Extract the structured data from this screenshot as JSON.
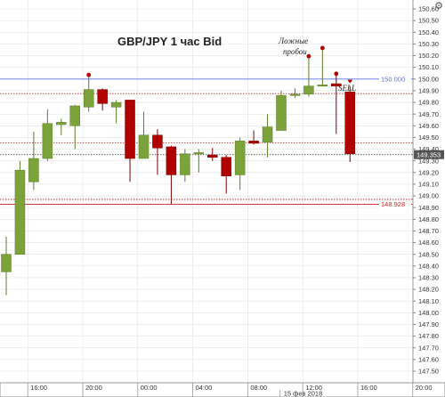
{
  "chart_data": {
    "type": "candlestick",
    "title": "GBP/JPY  1 час Bid",
    "annotation": [
      "Ложные",
      "пробои"
    ],
    "ylim": [
      147.5,
      150.77
    ],
    "yticks": [
      "150.60",
      "150.50",
      "150.40",
      "150.30",
      "150.20",
      "150.10",
      "150.00",
      "149.90",
      "149.80",
      "149.70",
      "149.60",
      "149.50",
      "149.40",
      "149.30",
      "149.20",
      "149.10",
      "149.00",
      "148.90",
      "148.80",
      "148.70",
      "148.60",
      "148.50",
      "148.40",
      "148.30",
      "148.20",
      "148.10",
      "148.00",
      "147.90",
      "147.80",
      "147.70",
      "147.60",
      "147.50"
    ],
    "xticks": [
      {
        "label": "16:00",
        "index": 2
      },
      {
        "label": "20:00",
        "index": 6
      },
      {
        "label": "00:00",
        "index": 10
      },
      {
        "label": "04:00",
        "index": 14
      },
      {
        "label": "08:00",
        "index": 18
      },
      {
        "label": "12:00",
        "index": 22
      },
      {
        "label": "16:00",
        "index": 26
      },
      {
        "label": "20:00",
        "index": 30
      }
    ],
    "date_label": {
      "label": "15 фев 2018",
      "index": 20.5
    },
    "candles": [
      {
        "o": 148.35,
        "h": 148.65,
        "l": 148.15,
        "c": 148.5
      },
      {
        "o": 148.5,
        "h": 149.3,
        "l": 148.5,
        "c": 149.22
      },
      {
        "o": 149.12,
        "h": 149.55,
        "l": 149.05,
        "c": 149.32
      },
      {
        "o": 149.32,
        "h": 149.74,
        "l": 149.3,
        "c": 149.62
      },
      {
        "o": 149.61,
        "h": 149.66,
        "l": 149.52,
        "c": 149.63
      },
      {
        "o": 149.6,
        "h": 149.78,
        "l": 149.4,
        "c": 149.77
      },
      {
        "o": 149.76,
        "h": 150.02,
        "l": 149.72,
        "c": 149.91
      },
      {
        "o": 149.91,
        "h": 149.92,
        "l": 149.73,
        "c": 149.79
      },
      {
        "o": 149.76,
        "h": 149.82,
        "l": 149.62,
        "c": 149.8
      },
      {
        "o": 149.82,
        "h": 149.82,
        "l": 149.12,
        "c": 149.32
      },
      {
        "o": 149.32,
        "h": 149.72,
        "l": 149.32,
        "c": 149.52
      },
      {
        "o": 149.52,
        "h": 149.57,
        "l": 149.18,
        "c": 149.41
      },
      {
        "o": 149.42,
        "h": 149.43,
        "l": 148.93,
        "c": 149.18
      },
      {
        "o": 149.18,
        "h": 149.4,
        "l": 149.12,
        "c": 149.36
      },
      {
        "o": 149.36,
        "h": 149.4,
        "l": 149.2,
        "c": 149.37
      },
      {
        "o": 149.35,
        "h": 149.41,
        "l": 149.3,
        "c": 149.33
      },
      {
        "o": 149.33,
        "h": 149.35,
        "l": 149.02,
        "c": 149.17
      },
      {
        "o": 149.18,
        "h": 149.5,
        "l": 149.05,
        "c": 149.47
      },
      {
        "o": 149.47,
        "h": 149.56,
        "l": 149.44,
        "c": 149.45
      },
      {
        "o": 149.46,
        "h": 149.7,
        "l": 149.33,
        "c": 149.59
      },
      {
        "o": 149.56,
        "h": 149.9,
        "l": 149.56,
        "c": 149.86
      },
      {
        "o": 149.86,
        "h": 149.92,
        "l": 149.84,
        "c": 149.87
      },
      {
        "o": 149.87,
        "h": 150.18,
        "l": 149.85,
        "c": 149.94
      },
      {
        "o": 149.94,
        "h": 150.25,
        "l": 149.94,
        "c": 149.95
      },
      {
        "o": 149.96,
        "h": 150.03,
        "l": 149.53,
        "c": 149.94
      },
      {
        "o": 149.89,
        "h": 149.94,
        "l": 149.29,
        "c": 149.36
      }
    ],
    "fractal_markers": [
      6,
      22,
      23,
      24
    ],
    "signal_marker": 25,
    "hlines": [
      {
        "value": 150.0,
        "label": "150.000",
        "color": "#5b6fe8",
        "style": "solid",
        "labeled": true
      },
      {
        "value": 149.875,
        "color": "#b03030",
        "style": "dotted",
        "labeled": false,
        "text": "SELL"
      },
      {
        "value": 149.455,
        "color": "#b03030",
        "style": "dotted",
        "labeled": false
      },
      {
        "value": 149.353,
        "label": "149.353",
        "color": "#555555",
        "style": "dotted",
        "labeled": true,
        "current": true
      },
      {
        "value": 148.97,
        "color": "#b03030",
        "style": "dotted",
        "labeled": false
      },
      {
        "value": 148.928,
        "label": "148.928",
        "color": "#d02020",
        "style": "solid",
        "labeled": true
      }
    ],
    "colors": {
      "bull": "#7ca23a",
      "bear": "#b00000",
      "grid": "#e2e2e2",
      "marker": "#b00000"
    },
    "grid": true
  },
  "ui": {
    "settings_icon": "gear-icon"
  }
}
